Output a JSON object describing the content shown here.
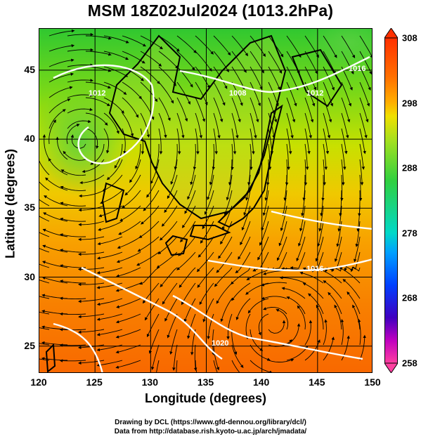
{
  "title": "MSM 18Z02Jul2024 (1013.2hPa)",
  "xlabel": "Longitude (degrees)",
  "ylabel": "Latitude  (degrees)",
  "x_ticks": [
    "120",
    "125",
    "130",
    "135",
    "140",
    "145",
    "150"
  ],
  "y_ticks": [
    "45",
    "40",
    "35",
    "30",
    "25"
  ],
  "colorbar": {
    "labels": [
      "308",
      "298",
      "288",
      "278",
      "268",
      "258"
    ],
    "colors": [
      "#ff40a0",
      "#c000c0",
      "#4000c0",
      "#0040ff",
      "#00a0ff",
      "#00d8c8",
      "#30d040",
      "#a0e020",
      "#f0e000",
      "#ffb000",
      "#ff7000",
      "#ff3000"
    ]
  },
  "contour_labels": [
    "1008",
    "1012",
    "1016",
    "1020",
    "1012",
    "1016"
  ],
  "credit_line1": "Drawing by DCL (https://www.gfd-dennou.org/library/dcl/)",
  "credit_line2": "Data from http://database.rish.kyoto-u.ac.jp/arch/jmadata/",
  "chart_data": {
    "type": "map",
    "variable": "temperature (K) with wind streamlines and pressure contours",
    "level": "1013.2hPa",
    "xlim": [
      120,
      150
    ],
    "ylim": [
      23,
      48
    ],
    "colorbar_range": [
      258,
      308
    ],
    "colorbar_ticks": [
      308,
      298,
      288,
      278,
      268,
      258
    ],
    "contour_labels": [
      1008,
      1012,
      1016,
      1020
    ]
  }
}
